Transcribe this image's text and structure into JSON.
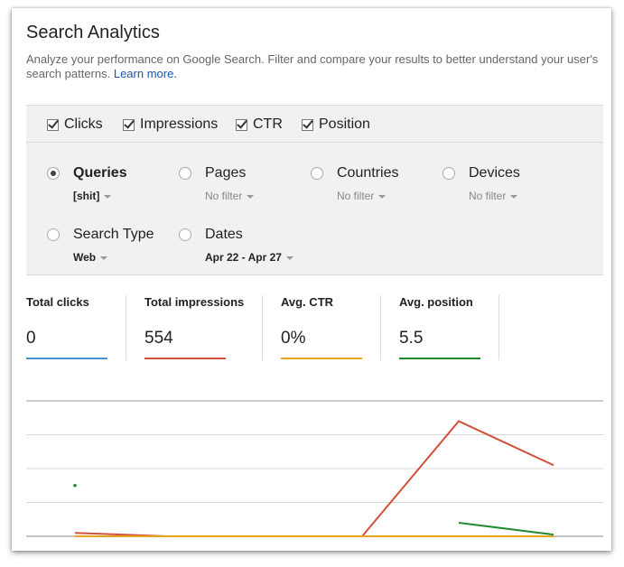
{
  "page": {
    "title": "Search Analytics",
    "description": "Analyze your performance on Google Search. Filter and compare your results to better understand your user's search patterns.",
    "learn_more": "Learn more."
  },
  "metrics_checkboxes": [
    {
      "label": "Clicks",
      "checked": true
    },
    {
      "label": "Impressions",
      "checked": true
    },
    {
      "label": "CTR",
      "checked": true
    },
    {
      "label": "Position",
      "checked": true
    }
  ],
  "dimensions": {
    "queries": {
      "label": "Queries",
      "value": "[shit]",
      "selected": true
    },
    "pages": {
      "label": "Pages",
      "value": "No filter",
      "selected": false
    },
    "countries": {
      "label": "Countries",
      "value": "No filter",
      "selected": false
    },
    "devices": {
      "label": "Devices",
      "value": "No filter",
      "selected": false
    },
    "search_type": {
      "label": "Search Type",
      "value": "Web",
      "selected": false
    },
    "dates": {
      "label": "Dates",
      "value": "Apr 22 - Apr 27",
      "selected": false
    }
  },
  "totals": [
    {
      "label": "Total clicks",
      "value": "0",
      "color": "#4a90d9"
    },
    {
      "label": "Total impressions",
      "value": "554",
      "color": "#d0503a"
    },
    {
      "label": "Avg. CTR",
      "value": "0%",
      "color": "#e8a41c"
    },
    {
      "label": "Avg. position",
      "value": "5.5",
      "color": "#1e8c2d"
    }
  ],
  "chart_data": {
    "type": "line",
    "x": [
      1,
      2,
      3,
      4,
      5,
      6
    ],
    "grid": true,
    "series": [
      {
        "color": "#4a90d9",
        "values": [
          0,
          0,
          0,
          0,
          0,
          0
        ]
      },
      {
        "color": "#d0503a",
        "values": [
          1,
          0,
          0,
          0,
          34,
          21
        ]
      },
      {
        "color": "#e8a41c",
        "values": [
          0,
          0,
          0,
          0,
          0,
          0
        ]
      },
      {
        "color": "#1e8c2d",
        "values": [
          15,
          null,
          null,
          null,
          4,
          0.5
        ]
      }
    ],
    "ylim": [
      0,
      40
    ]
  }
}
